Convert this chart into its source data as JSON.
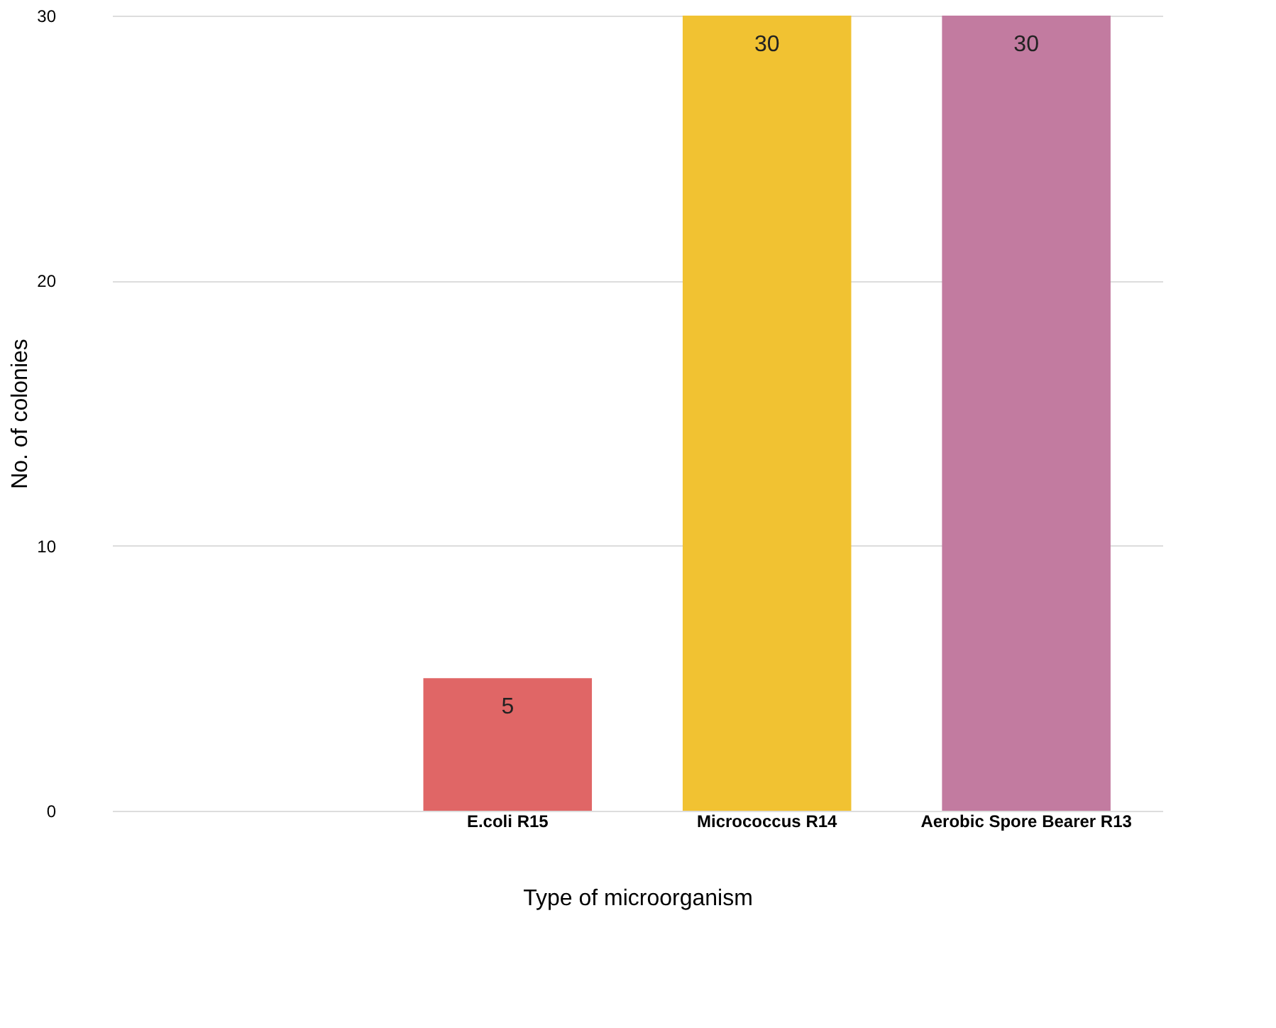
{
  "chart_data": {
    "type": "bar",
    "xlabel": "Type of microorganism",
    "ylabel": "No. of colonies",
    "categories": [
      null,
      "E.coli R15",
      "Micrococcus R14",
      "Aerobic Spore Bearer R13"
    ],
    "values": [
      null,
      5,
      30,
      30
    ],
    "colors": [
      "#999999",
      "#e06666",
      "#f1c232",
      "#c27ba0"
    ],
    "ylim": [
      0,
      30
    ],
    "yticks": [
      0,
      10,
      20,
      30
    ],
    "grid": "y",
    "data_labels": true
  }
}
